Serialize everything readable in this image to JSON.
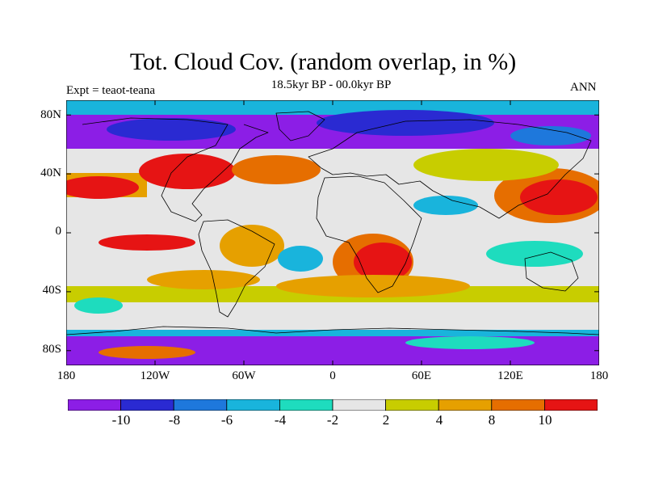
{
  "header": {
    "title": "Tot. Cloud Cov. (random overlap, in %)",
    "subtitle": "18.5kyr BP - 00.0kyr BP",
    "left_label": "Expt = teaot-teana",
    "right_label": "ANN"
  },
  "axes": {
    "lat_labels": [
      "80N",
      "40N",
      "0",
      "40S",
      "80S"
    ],
    "lon_labels": [
      "180",
      "120W",
      "60W",
      "0",
      "60E",
      "120E",
      "180"
    ],
    "lat_range": [
      -90,
      90
    ],
    "lon_range": [
      -180,
      180
    ]
  },
  "colorbar": {
    "labels": [
      "-10",
      "-8",
      "-6",
      "-4",
      "-2",
      "2",
      "4",
      "8",
      "10"
    ],
    "levels": [
      -12,
      -10,
      -8,
      -6,
      -4,
      -2,
      2,
      4,
      6,
      8,
      10,
      12
    ],
    "colors": [
      "#8c1ee6",
      "#2a2ad2",
      "#1e78dc",
      "#19b4dc",
      "#1edcbe",
      "#e6e6e6",
      "#c8cd00",
      "#e6a000",
      "#e66e00",
      "#e61414"
    ]
  }
}
